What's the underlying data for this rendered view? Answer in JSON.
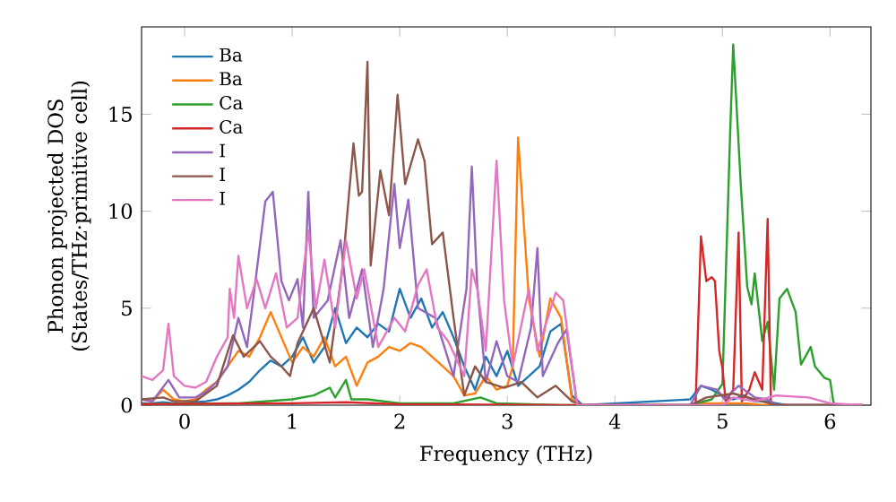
{
  "chart_data": {
    "type": "line",
    "xlabel": "Frequency (THz)",
    "ylabel": "Phonon projected DOS (States/THz·primitive cell)",
    "xlim": [
      -0.4,
      6.38
    ],
    "ylim": [
      0,
      19.5
    ],
    "xticks": [
      0,
      1,
      2,
      3,
      4,
      5,
      6
    ],
    "yticks": [
      0,
      5,
      10,
      15
    ],
    "grid": false,
    "legend": "top left",
    "marker": "none",
    "line_style": "solid",
    "series": [
      {
        "name": "Ba",
        "color": "#1f77b4",
        "x": [
          -0.4,
          -0.3,
          -0.2,
          -0.1,
          0,
          0.1,
          0.2,
          0.3,
          0.4,
          0.5,
          0.6,
          0.7,
          0.8,
          0.9,
          1.0,
          1.1,
          1.2,
          1.3,
          1.4,
          1.5,
          1.6,
          1.7,
          1.8,
          1.9,
          2.0,
          2.1,
          2.2,
          2.3,
          2.4,
          2.5,
          2.6,
          2.7,
          2.8,
          2.9,
          3.0,
          3.1,
          3.2,
          3.3,
          3.4,
          3.5,
          3.6,
          3.7,
          4.7,
          4.8,
          4.9,
          5.0,
          5.1,
          5.2,
          5.3,
          5.4,
          5.5,
          5.6,
          6.3
        ],
        "values": [
          0.1,
          0.1,
          0.15,
          0.1,
          0.1,
          0.15,
          0.2,
          0.3,
          0.5,
          0.8,
          1.2,
          1.8,
          2.3,
          2.0,
          2.5,
          3.5,
          2.2,
          3.0,
          5.0,
          3.2,
          4.0,
          3.5,
          4.2,
          3.8,
          6.0,
          4.5,
          5.5,
          4.0,
          4.8,
          3.5,
          2.0,
          0.8,
          2.5,
          1.5,
          2.8,
          1.0,
          1.5,
          2.0,
          3.8,
          4.2,
          0.5,
          0,
          0.3,
          1.0,
          0.8,
          0.5,
          0.3,
          0.5,
          0.2,
          0.2,
          0.1,
          0,
          0
        ]
      },
      {
        "name": "Ba",
        "color": "#ff7f0e",
        "x": [
          -0.4,
          -0.3,
          -0.2,
          -0.1,
          0,
          0.1,
          0.2,
          0.3,
          0.4,
          0.5,
          0.6,
          0.7,
          0.8,
          0.9,
          1.0,
          1.1,
          1.2,
          1.3,
          1.4,
          1.5,
          1.6,
          1.7,
          1.8,
          1.9,
          2.0,
          2.1,
          2.2,
          2.3,
          2.4,
          2.5,
          2.6,
          2.7,
          2.8,
          2.9,
          3.0,
          3.05,
          3.1,
          3.2,
          3.3,
          3.4,
          3.5,
          3.6,
          3.7,
          4.7,
          4.8,
          5.0,
          5.2,
          5.4,
          6.3
        ],
        "values": [
          0.3,
          0.2,
          0.8,
          0.3,
          0.2,
          0.3,
          0.8,
          1.2,
          2.0,
          2.8,
          2.5,
          3.5,
          4.8,
          3.5,
          2.2,
          3.0,
          2.5,
          3.5,
          2.0,
          2.5,
          1.0,
          2.2,
          2.5,
          3.0,
          2.8,
          3.2,
          3.0,
          2.5,
          2.0,
          1.5,
          0.5,
          0.6,
          1.5,
          0.8,
          1.0,
          2.0,
          13.8,
          5.5,
          2.5,
          5.5,
          4.5,
          0.3,
          0,
          0,
          0.1,
          0.1,
          0.1,
          0,
          0
        ]
      },
      {
        "name": "Ca",
        "color": "#2ca02c",
        "x": [
          -0.4,
          0.5,
          1.0,
          1.2,
          1.35,
          1.4,
          1.5,
          1.55,
          1.7,
          2.0,
          2.5,
          2.75,
          2.9,
          3.5,
          4.7,
          4.9,
          5.0,
          5.07,
          5.1,
          5.17,
          5.23,
          5.27,
          5.3,
          5.37,
          5.42,
          5.48,
          5.53,
          5.6,
          5.68,
          5.73,
          5.82,
          5.86,
          5.95,
          6.0,
          6.03,
          6.05
        ],
        "values": [
          0.05,
          0.1,
          0.3,
          0.5,
          0.9,
          0.4,
          1.3,
          0.3,
          0.3,
          0.1,
          0.1,
          0.4,
          0.1,
          0,
          0,
          0.3,
          1.1,
          13.8,
          18.6,
          11.4,
          6.1,
          5.2,
          6.8,
          3.3,
          4.3,
          0.8,
          5.5,
          6.0,
          4.8,
          2.1,
          3.0,
          2.0,
          1.4,
          1.3,
          0.2,
          0
        ]
      },
      {
        "name": "Ca",
        "color": "#d62728",
        "x": [
          -0.4,
          1.0,
          1.5,
          2.0,
          3.5,
          4.75,
          4.8,
          4.85,
          4.9,
          4.93,
          4.97,
          5.0,
          5.03,
          5.1,
          5.15,
          5.18,
          5.25,
          5.3,
          5.37,
          5.42,
          5.45,
          5.5,
          6.3
        ],
        "values": [
          0.05,
          0.1,
          0.15,
          0.05,
          0,
          0,
          8.7,
          6.4,
          6.6,
          6.4,
          2.8,
          1.9,
          0.2,
          0.8,
          8.9,
          0.2,
          0.8,
          1.7,
          0.8,
          9.6,
          0.2,
          0,
          0
        ]
      },
      {
        "name": "I",
        "color": "#9467bd",
        "x": [
          -0.4,
          -0.3,
          -0.15,
          -0.05,
          0.1,
          0.2,
          0.3,
          0.4,
          0.5,
          0.58,
          0.65,
          0.75,
          0.82,
          0.9,
          0.97,
          1.05,
          1.1,
          1.15,
          1.2,
          1.33,
          1.45,
          1.53,
          1.65,
          1.75,
          1.85,
          1.95,
          2.0,
          2.08,
          2.17,
          2.33,
          2.5,
          2.62,
          2.67,
          2.72,
          2.8,
          2.9,
          3.0,
          3.1,
          3.22,
          3.28,
          3.33,
          3.47,
          3.55,
          3.65,
          4.7,
          4.8,
          4.95,
          5.02,
          5.15,
          5.3,
          5.42,
          5.5,
          6.3
        ],
        "values": [
          0.3,
          0.2,
          1.3,
          0.4,
          0.4,
          0.7,
          1.2,
          2.0,
          4.5,
          3.0,
          6.0,
          10.5,
          11.0,
          6.4,
          5.4,
          6.5,
          4.0,
          11.0,
          4.5,
          5.4,
          8.5,
          4.5,
          7.0,
          3.0,
          6.0,
          11.4,
          8.1,
          10.6,
          5.0,
          4.5,
          1.5,
          6.0,
          12.3,
          6.2,
          1.2,
          3.3,
          1.5,
          1.2,
          4.0,
          8.1,
          1.5,
          3.2,
          3.9,
          0,
          0,
          1.0,
          0.8,
          0.3,
          1.0,
          0.4,
          0.3,
          0,
          0
        ]
      },
      {
        "name": "I",
        "color": "#8c564b",
        "x": [
          -0.4,
          -0.2,
          -0.1,
          0.1,
          0.3,
          0.45,
          0.55,
          0.7,
          0.8,
          0.9,
          0.98,
          1.05,
          1.2,
          1.35,
          1.47,
          1.57,
          1.62,
          1.65,
          1.7,
          1.73,
          1.82,
          1.9,
          1.98,
          2.05,
          2.17,
          2.23,
          2.3,
          2.4,
          2.5,
          2.6,
          2.7,
          2.8,
          2.97,
          3.13,
          3.28,
          3.45,
          3.6,
          3.7,
          4.7,
          4.85,
          5.1,
          5.3,
          5.5,
          6.3
        ],
        "values": [
          0.3,
          0.4,
          0.2,
          0.2,
          1.0,
          3.6,
          2.5,
          3.3,
          2.5,
          2.0,
          1.5,
          3.2,
          5.0,
          2.2,
          7.2,
          13.5,
          10.8,
          11.0,
          17.7,
          7.2,
          12.1,
          9.8,
          16.0,
          11.4,
          13.7,
          12.6,
          8.3,
          8.9,
          4.5,
          0.5,
          2.0,
          1.2,
          0.9,
          1.2,
          0.4,
          1.0,
          0.2,
          0,
          0,
          0.4,
          0.6,
          0.3,
          0,
          0
        ]
      },
      {
        "name": "I",
        "color": "#e377c2",
        "x": [
          -0.4,
          -0.3,
          -0.2,
          -0.15,
          -0.1,
          0,
          0.1,
          0.2,
          0.3,
          0.4,
          0.42,
          0.46,
          0.5,
          0.58,
          0.67,
          0.75,
          0.85,
          0.95,
          1.05,
          1.15,
          1.22,
          1.3,
          1.4,
          1.5,
          1.6,
          1.67,
          1.8,
          1.95,
          2.05,
          2.17,
          2.25,
          2.35,
          2.45,
          2.6,
          2.67,
          2.72,
          2.8,
          2.9,
          2.97,
          3.05,
          3.2,
          3.28,
          3.45,
          3.52,
          3.65,
          5.0,
          5.1,
          5.3,
          5.5,
          5.8,
          6.0,
          6.3
        ],
        "values": [
          1.5,
          1.3,
          1.8,
          4.2,
          1.5,
          1.0,
          0.9,
          1.2,
          2.5,
          3.5,
          6.0,
          4.5,
          7.7,
          5.0,
          6.5,
          5.0,
          6.8,
          4.0,
          4.5,
          9.0,
          5.0,
          7.5,
          4.0,
          8.5,
          5.5,
          7.0,
          3.0,
          4.5,
          3.8,
          6.2,
          7.0,
          4.0,
          3.3,
          1.5,
          7.0,
          6.0,
          2.8,
          12.6,
          5.4,
          2.0,
          6.0,
          2.8,
          5.8,
          5.4,
          0,
          0,
          0.4,
          0.2,
          0.5,
          0.4,
          0.1,
          0
        ]
      }
    ]
  }
}
